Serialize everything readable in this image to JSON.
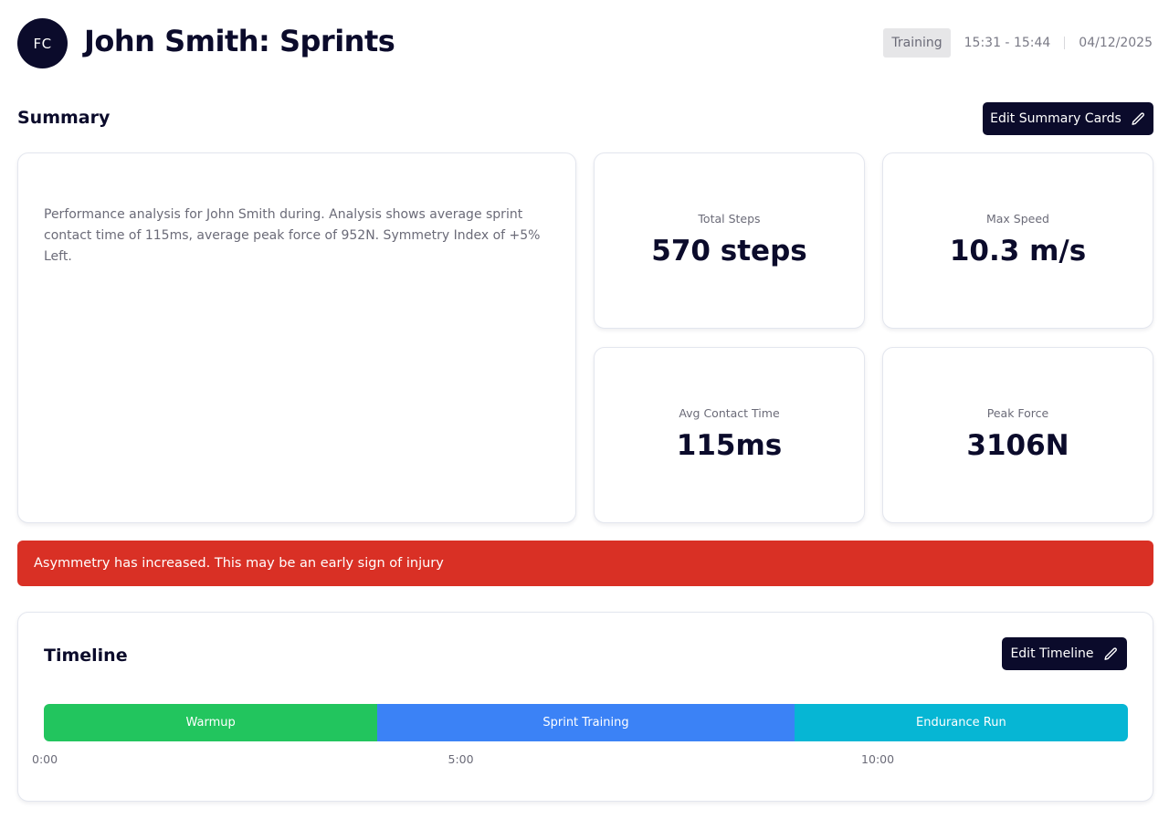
{
  "header": {
    "avatar_initials": "FC",
    "title": "John Smith: Sprints",
    "session_type": "Training",
    "time_range": "15:31 - 15:44",
    "date": "04/12/2025"
  },
  "summary": {
    "section_title": "Summary",
    "edit_button_label": "Edit Summary Cards",
    "description": "Performance analysis for John Smith during. Analysis shows average sprint contact time of 115ms, average peak force of 952N. Symmetry Index of +5% Left.",
    "cards": [
      {
        "label": "Total Steps",
        "value": "570 steps"
      },
      {
        "label": "Max Speed",
        "value": "10.3 m/s"
      },
      {
        "label": "Avg Contact Time",
        "value": "115ms"
      },
      {
        "label": "Peak Force",
        "value": "3106N"
      }
    ]
  },
  "alert": {
    "message": "Asymmetry has increased. This may be an early sign of injury",
    "color": "#d93025"
  },
  "timeline": {
    "title": "Timeline",
    "edit_button_label": "Edit Timeline",
    "total_minutes": 13,
    "segments": [
      {
        "label": "Warmup",
        "start_min": 0,
        "end_min": 4,
        "color": "#22c55e"
      },
      {
        "label": "Sprint Training",
        "start_min": 4,
        "end_min": 9,
        "color": "#3b82f6"
      },
      {
        "label": "Endurance Run",
        "start_min": 9,
        "end_min": 13,
        "color": "#06b6d4"
      }
    ],
    "ticks": [
      {
        "label": "0:00",
        "minute": 0
      },
      {
        "label": "5:00",
        "minute": 5
      },
      {
        "label": "10:00",
        "minute": 10
      }
    ]
  },
  "icons": {
    "edit_icon": "pencil-icon"
  },
  "colors": {
    "brand_dark": "#0b0b2b"
  }
}
